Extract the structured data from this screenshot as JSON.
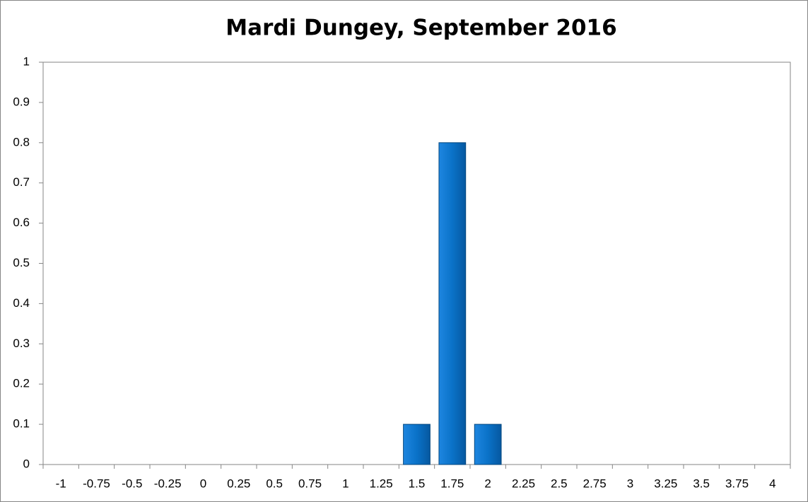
{
  "chart_data": {
    "type": "bar",
    "title": "Mardi Dungey, September 2016",
    "categories": [
      "-1",
      "-0.75",
      "-0.5",
      "-0.25",
      "0",
      "0.25",
      "0.5",
      "0.75",
      "1",
      "1.25",
      "1.5",
      "1.75",
      "2",
      "2.25",
      "2.5",
      "2.75",
      "3",
      "3.25",
      "3.5",
      "3.75",
      "4"
    ],
    "values": [
      0,
      0,
      0,
      0,
      0,
      0,
      0,
      0,
      0,
      0,
      0.1,
      0.8,
      0.1,
      0,
      0,
      0,
      0,
      0,
      0,
      0,
      0
    ],
    "color": "#0a72c8",
    "ylim": [
      0,
      1
    ],
    "yticks": [
      0,
      0.1,
      0.2,
      0.3,
      0.4,
      0.5,
      0.6,
      0.7,
      0.8,
      0.9,
      1
    ],
    "grid": false
  }
}
